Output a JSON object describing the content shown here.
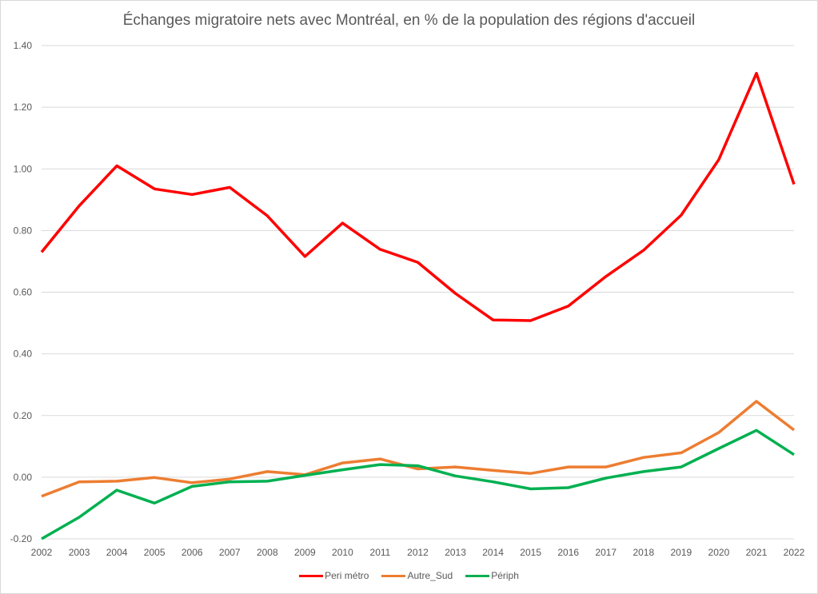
{
  "chart_data": {
    "type": "line",
    "title": "Échanges migratoire nets avec Montréal, en % de la population des régions d'accueil",
    "xlabel": "",
    "ylabel": "",
    "x": [
      "2002",
      "2003",
      "2004",
      "2005",
      "2006",
      "2007",
      "2008",
      "2009",
      "2010",
      "2011",
      "2012",
      "2013",
      "2014",
      "2015",
      "2016",
      "2017",
      "2018",
      "2019",
      "2020",
      "2021",
      "2022"
    ],
    "ylim": [
      -0.2,
      1.4
    ],
    "yticks": [
      -0.2,
      0.0,
      0.2,
      0.4,
      0.6,
      0.8,
      1.0,
      1.2,
      1.4
    ],
    "ytick_labels": [
      "-0.20",
      "0.00",
      "0.20",
      "0.40",
      "0.60",
      "0.80",
      "1.00",
      "1.20",
      "1.40"
    ],
    "grid": true,
    "legend_position": "bottom",
    "series": [
      {
        "name": "Peri métro",
        "color": "#ff0000",
        "values": [
          0.73,
          0.88,
          1.01,
          0.935,
          0.917,
          0.94,
          0.848,
          0.716,
          0.824,
          0.739,
          0.697,
          0.596,
          0.51,
          0.508,
          0.555,
          0.651,
          0.736,
          0.85,
          1.03,
          1.31,
          0.95
        ]
      },
      {
        "name": "Autre_Sud",
        "color": "#ed7d31",
        "values": [
          -0.062,
          -0.015,
          -0.013,
          -0.001,
          -0.018,
          -0.006,
          0.018,
          0.008,
          0.046,
          0.059,
          0.027,
          0.033,
          0.022,
          0.012,
          0.033,
          0.033,
          0.064,
          0.079,
          0.145,
          0.246,
          0.153
        ]
      },
      {
        "name": "Périph",
        "color": "#00b050",
        "values": [
          -0.2,
          -0.13,
          -0.042,
          -0.084,
          -0.03,
          -0.015,
          -0.013,
          0.006,
          0.024,
          0.041,
          0.037,
          0.004,
          -0.015,
          -0.038,
          -0.034,
          -0.003,
          0.018,
          0.033,
          0.093,
          0.152,
          0.073
        ]
      }
    ]
  }
}
